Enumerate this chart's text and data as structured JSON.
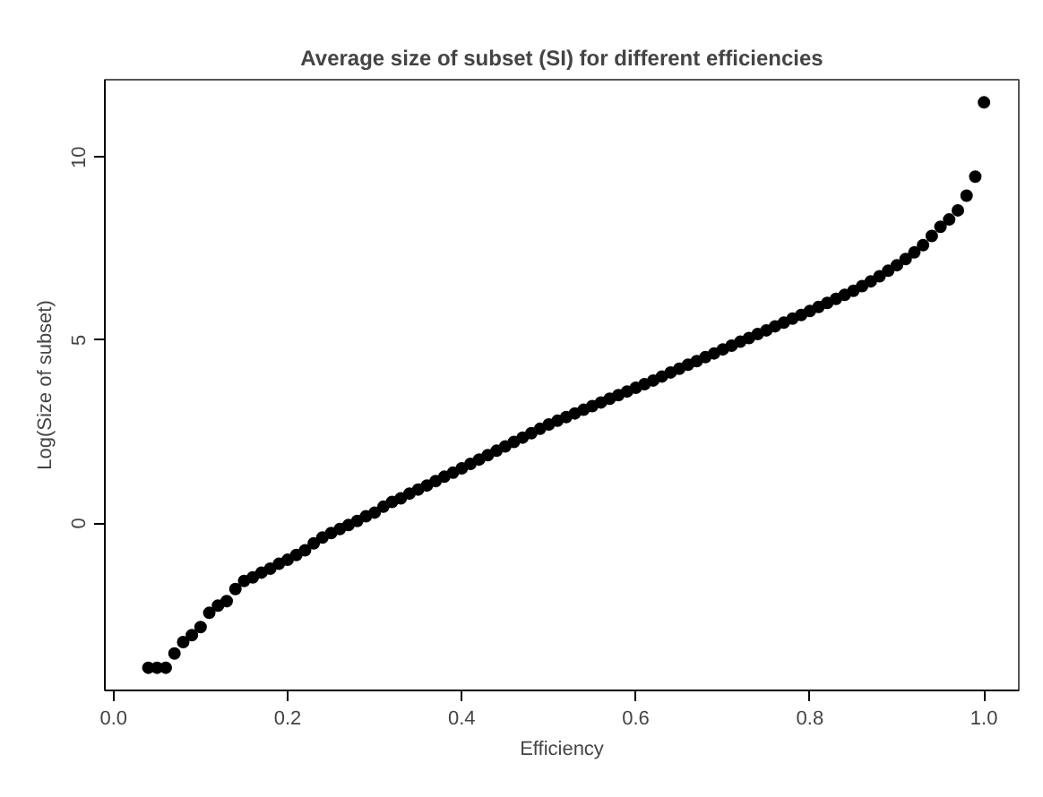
{
  "chart_data": {
    "type": "scatter",
    "title": "Average size of subset (SI) for different efficiencies",
    "xlabel": "Efficiency",
    "ylabel": "Log(Size of subset)",
    "x": [
      0.04,
      0.05,
      0.06,
      0.07,
      0.08,
      0.09,
      0.1,
      0.11,
      0.12,
      0.13,
      0.14,
      0.15,
      0.16,
      0.17,
      0.18,
      0.19,
      0.2,
      0.21,
      0.22,
      0.23,
      0.24,
      0.25,
      0.26,
      0.27,
      0.28,
      0.29,
      0.3,
      0.31,
      0.32,
      0.33,
      0.34,
      0.35,
      0.36,
      0.37,
      0.38,
      0.39,
      0.4,
      0.41,
      0.42,
      0.43,
      0.44,
      0.45,
      0.46,
      0.47,
      0.48,
      0.49,
      0.5,
      0.51,
      0.52,
      0.53,
      0.54,
      0.55,
      0.56,
      0.57,
      0.58,
      0.59,
      0.6,
      0.61,
      0.62,
      0.63,
      0.64,
      0.65,
      0.66,
      0.67,
      0.68,
      0.69,
      0.7,
      0.71,
      0.72,
      0.73,
      0.74,
      0.75,
      0.76,
      0.77,
      0.78,
      0.79,
      0.8,
      0.81,
      0.82,
      0.83,
      0.84,
      0.85,
      0.86,
      0.87,
      0.88,
      0.89,
      0.9,
      0.91,
      0.92,
      0.93,
      0.94,
      0.95,
      0.96,
      0.97,
      0.98,
      0.99,
      1.0
    ],
    "series": [
      {
        "color": "#000000",
        "values": [
          -3.95,
          -3.95,
          -3.95,
          -3.56,
          -3.25,
          -3.06,
          -2.84,
          -2.45,
          -2.25,
          -2.13,
          -1.8,
          -1.58,
          -1.48,
          -1.35,
          -1.24,
          -1.11,
          -1.0,
          -0.87,
          -0.74,
          -0.55,
          -0.39,
          -0.27,
          -0.16,
          -0.05,
          0.06,
          0.19,
          0.29,
          0.45,
          0.58,
          0.68,
          0.81,
          0.92,
          1.03,
          1.15,
          1.27,
          1.38,
          1.5,
          1.62,
          1.74,
          1.86,
          1.98,
          2.1,
          2.22,
          2.34,
          2.46,
          2.58,
          2.7,
          2.8,
          2.9,
          3.0,
          3.1,
          3.2,
          3.3,
          3.4,
          3.5,
          3.6,
          3.7,
          3.8,
          3.9,
          4.01,
          4.12,
          4.22,
          4.33,
          4.43,
          4.54,
          4.64,
          4.75,
          4.85,
          4.96,
          5.06,
          5.17,
          5.27,
          5.38,
          5.48,
          5.59,
          5.69,
          5.8,
          5.91,
          6.02,
          6.13,
          6.24,
          6.35,
          6.48,
          6.61,
          6.75,
          6.9,
          7.05,
          7.22,
          7.4,
          7.6,
          7.85,
          8.1,
          8.3,
          8.55,
          8.95,
          9.47,
          11.5
        ]
      }
    ],
    "xlim": [
      -0.01,
      1.04
    ],
    "ylim": [
      -4.57,
      12.12
    ],
    "xticks": [
      {
        "value": 0,
        "label": "0.0"
      },
      0.2,
      0.4,
      0.6,
      0.8,
      {
        "value": 1,
        "label": "1.0"
      }
    ],
    "yticks": [
      0,
      5,
      10
    ],
    "marker": "circle",
    "grid": false
  }
}
